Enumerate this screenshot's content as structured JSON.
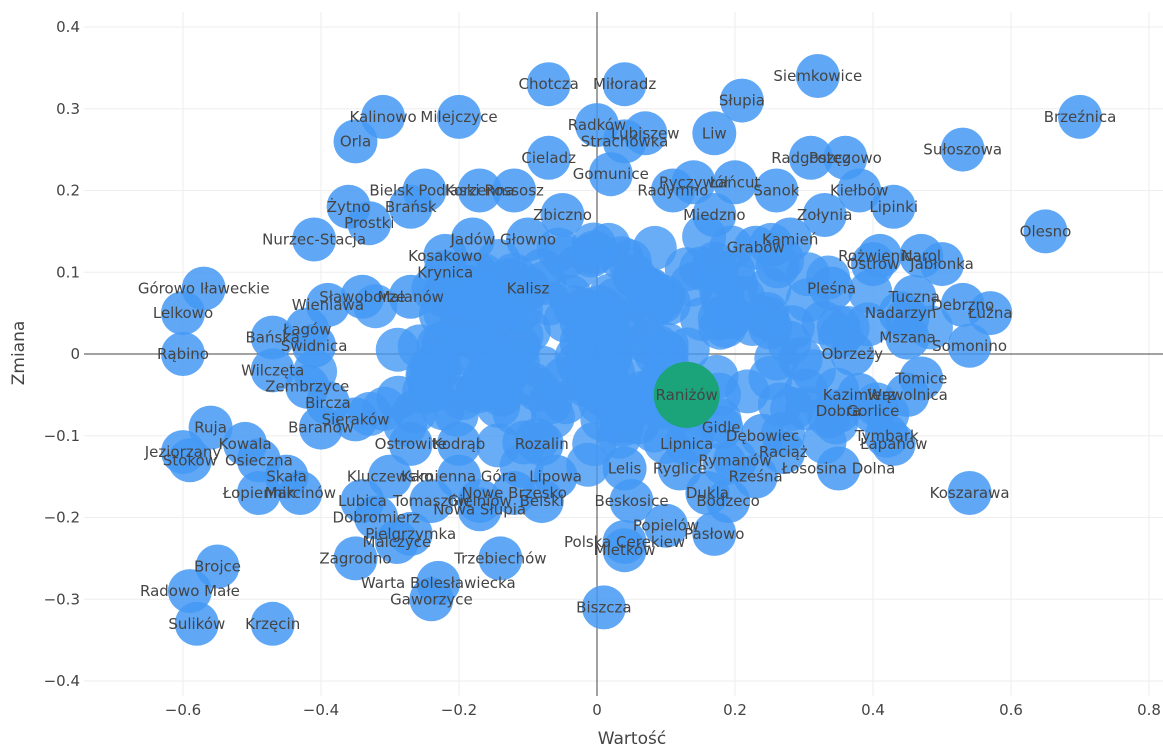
{
  "chart_data": {
    "type": "scatter",
    "xlabel": "Wartość",
    "ylabel": "Zmiana",
    "xlim": [
      -0.72,
      0.82
    ],
    "ylim": [
      -0.42,
      0.42
    ],
    "x_ticks": [
      -0.6,
      -0.4,
      -0.2,
      0,
      0.2,
      0.4,
      0.6,
      0.8
    ],
    "y_ticks": [
      -0.4,
      -0.3,
      -0.2,
      -0.1,
      0,
      0.1,
      0.2,
      0.3,
      0.4
    ],
    "grid": true,
    "legend": "none",
    "colors": {
      "point": "#4499f5",
      "highlight": "#1ba37a",
      "text": "#444444",
      "grid": "#eeeeee",
      "zeroline": "#444444"
    },
    "points": [
      {
        "label": "Brzeźnica",
        "x": 0.7,
        "y": 0.29
      },
      {
        "label": "Sułoszowa",
        "x": 0.53,
        "y": 0.25
      },
      {
        "label": "Olesno",
        "x": 0.65,
        "y": 0.15
      },
      {
        "label": "Siemkowice",
        "x": 0.32,
        "y": 0.34
      },
      {
        "label": "Miłoradz",
        "x": 0.04,
        "y": 0.33
      },
      {
        "label": "Chotcza",
        "x": -0.07,
        "y": 0.33
      },
      {
        "label": "Słupia",
        "x": 0.21,
        "y": 0.31
      },
      {
        "label": "Kalinowo",
        "x": -0.31,
        "y": 0.29
      },
      {
        "label": "Milejczyce",
        "x": -0.2,
        "y": 0.29
      },
      {
        "label": "Orla",
        "x": -0.35,
        "y": 0.26
      },
      {
        "label": "Radków",
        "x": 0.0,
        "y": 0.28
      },
      {
        "label": "Lubiszew",
        "x": 0.07,
        "y": 0.27
      },
      {
        "label": "Strachówka",
        "x": 0.04,
        "y": 0.26
      },
      {
        "label": "Liw",
        "x": 0.17,
        "y": 0.27
      },
      {
        "label": "Radgoszcz",
        "x": 0.31,
        "y": 0.24
      },
      {
        "label": "Potęgowo",
        "x": 0.36,
        "y": 0.24
      },
      {
        "label": "Cieladz",
        "x": -0.07,
        "y": 0.24
      },
      {
        "label": "Gomunice",
        "x": 0.02,
        "y": 0.22
      },
      {
        "label": "Kiełbów",
        "x": 0.38,
        "y": 0.2
      },
      {
        "label": "Lipinki",
        "x": 0.43,
        "y": 0.18
      },
      {
        "label": "Zołynia",
        "x": 0.33,
        "y": 0.17
      },
      {
        "label": "Kamień",
        "x": 0.28,
        "y": 0.14
      },
      {
        "label": "Rożwienica",
        "x": 0.41,
        "y": 0.12
      },
      {
        "label": "Bielsk Podlaski",
        "x": -0.25,
        "y": 0.2
      },
      {
        "label": "Korzenna",
        "x": -0.17,
        "y": 0.2
      },
      {
        "label": "Rossosz",
        "x": -0.12,
        "y": 0.2
      },
      {
        "label": "Radymno",
        "x": 0.11,
        "y": 0.2
      },
      {
        "label": "Łańcut",
        "x": 0.2,
        "y": 0.21
      },
      {
        "label": "Ryczywół",
        "x": 0.14,
        "y": 0.21
      },
      {
        "label": "Sanok",
        "x": 0.26,
        "y": 0.2
      },
      {
        "label": "Żytno",
        "x": -0.36,
        "y": 0.18
      },
      {
        "label": "Brańsk",
        "x": -0.27,
        "y": 0.18
      },
      {
        "label": "Prostki",
        "x": -0.33,
        "y": 0.16
      },
      {
        "label": "Zbiczno",
        "x": -0.05,
        "y": 0.17
      },
      {
        "label": "Miedzno",
        "x": 0.17,
        "y": 0.17
      },
      {
        "label": "Nurzec-Stacja",
        "x": -0.41,
        "y": 0.14
      },
      {
        "label": "Jadów",
        "x": -0.18,
        "y": 0.14
      },
      {
        "label": "Głowno",
        "x": -0.1,
        "y": 0.14
      },
      {
        "label": "Grabów",
        "x": 0.23,
        "y": 0.13
      },
      {
        "label": "Kosakowo",
        "x": -0.22,
        "y": 0.12
      },
      {
        "label": "Ostrów",
        "x": 0.4,
        "y": 0.11
      },
      {
        "label": "Narol",
        "x": 0.47,
        "y": 0.12
      },
      {
        "label": "Jabłonka",
        "x": 0.5,
        "y": 0.11
      },
      {
        "label": "Górowo Iławeckie",
        "x": -0.57,
        "y": 0.08
      },
      {
        "label": "Lelkowo",
        "x": -0.6,
        "y": 0.05
      },
      {
        "label": "Krynica",
        "x": -0.22,
        "y": 0.1
      },
      {
        "label": "Sławoborze",
        "x": -0.34,
        "y": 0.07
      },
      {
        "label": "Wieniawa",
        "x": -0.39,
        "y": 0.06
      },
      {
        "label": "Malanów",
        "x": -0.27,
        "y": 0.07
      },
      {
        "label": "Kalisz",
        "x": -0.1,
        "y": 0.08
      },
      {
        "label": "Pleśna",
        "x": 0.34,
        "y": 0.08
      },
      {
        "label": "Tuczna",
        "x": 0.46,
        "y": 0.07
      },
      {
        "label": "Nadarzyn",
        "x": 0.44,
        "y": 0.05
      },
      {
        "label": "Debrzno",
        "x": 0.53,
        "y": 0.06
      },
      {
        "label": "Łużna",
        "x": 0.57,
        "y": 0.05
      },
      {
        "label": "Bańska",
        "x": -0.47,
        "y": 0.02
      },
      {
        "label": "Łagów",
        "x": -0.42,
        "y": 0.03
      },
      {
        "label": "Świdnica",
        "x": -0.41,
        "y": 0.01
      },
      {
        "label": "Rąbino",
        "x": -0.6,
        "y": 0.0
      },
      {
        "label": "Mszana",
        "x": 0.45,
        "y": 0.02
      },
      {
        "label": "Somonino",
        "x": 0.54,
        "y": 0.01
      },
      {
        "label": "Obrzeży",
        "x": 0.37,
        "y": 0.0
      },
      {
        "label": "Wilczęta",
        "x": -0.47,
        "y": -0.02
      },
      {
        "label": "Zembrzyce",
        "x": -0.42,
        "y": -0.04
      },
      {
        "label": "Tomice",
        "x": 0.47,
        "y": -0.03
      },
      {
        "label": "Kazimierz",
        "x": 0.38,
        "y": -0.05
      },
      {
        "label": "Wąwolnica",
        "x": 0.45,
        "y": -0.05
      },
      {
        "label": "Raniżów",
        "x": 0.13,
        "y": -0.05
      },
      {
        "label": "Bircza",
        "x": -0.39,
        "y": -0.06
      },
      {
        "label": "Dobra",
        "x": 0.35,
        "y": -0.07
      },
      {
        "label": "Gorlice",
        "x": 0.4,
        "y": -0.07
      },
      {
        "label": "Ruja",
        "x": -0.56,
        "y": -0.09
      },
      {
        "label": "Baranów",
        "x": -0.4,
        "y": -0.09
      },
      {
        "label": "Sieraków",
        "x": -0.35,
        "y": -0.08
      },
      {
        "label": "Gidle",
        "x": 0.18,
        "y": -0.09
      },
      {
        "label": "Dębowiec",
        "x": 0.24,
        "y": -0.1
      },
      {
        "label": "Tymbark",
        "x": 0.42,
        "y": -0.1
      },
      {
        "label": "Łapanów",
        "x": 0.43,
        "y": -0.11
      },
      {
        "label": "Jeziorzany",
        "x": -0.6,
        "y": -0.12
      },
      {
        "label": "Stoków",
        "x": -0.59,
        "y": -0.13
      },
      {
        "label": "Kowala",
        "x": -0.51,
        "y": -0.11
      },
      {
        "label": "Osieczna",
        "x": -0.49,
        "y": -0.13
      },
      {
        "label": "Ostrowite",
        "x": -0.27,
        "y": -0.11
      },
      {
        "label": "Kodrąb",
        "x": -0.2,
        "y": -0.11
      },
      {
        "label": "Rozalin",
        "x": -0.08,
        "y": -0.11
      },
      {
        "label": "Lipnica",
        "x": 0.13,
        "y": -0.11
      },
      {
        "label": "Raciąż",
        "x": 0.27,
        "y": -0.12
      },
      {
        "label": "Rymanów",
        "x": 0.2,
        "y": -0.13
      },
      {
        "label": "Skała",
        "x": -0.45,
        "y": -0.15
      },
      {
        "label": "Kluczewsko",
        "x": -0.3,
        "y": -0.15
      },
      {
        "label": "Kamienna Góra",
        "x": -0.2,
        "y": -0.15
      },
      {
        "label": "Lipowa",
        "x": -0.06,
        "y": -0.15
      },
      {
        "label": "Lelis",
        "x": 0.04,
        "y": -0.14
      },
      {
        "label": "Ryglice",
        "x": 0.12,
        "y": -0.14
      },
      {
        "label": "Rześna",
        "x": 0.23,
        "y": -0.15
      },
      {
        "label": "Łososina Dolna",
        "x": 0.35,
        "y": -0.14
      },
      {
        "label": "Łopiennik",
        "x": -0.49,
        "y": -0.17
      },
      {
        "label": "Marcinów",
        "x": -0.43,
        "y": -0.17
      },
      {
        "label": "Lubica",
        "x": -0.34,
        "y": -0.18
      },
      {
        "label": "Tomaszów",
        "x": -0.24,
        "y": -0.18
      },
      {
        "label": "Gielniów",
        "x": -0.17,
        "y": -0.18
      },
      {
        "label": "Nowe Brzesko",
        "x": -0.12,
        "y": -0.17
      },
      {
        "label": "Belski",
        "x": -0.08,
        "y": -0.18
      },
      {
        "label": "Nowa Słupia",
        "x": -0.17,
        "y": -0.19
      },
      {
        "label": "Beskosice",
        "x": 0.05,
        "y": -0.18
      },
      {
        "label": "Dukla",
        "x": 0.16,
        "y": -0.17
      },
      {
        "label": "Bodzeco",
        "x": 0.19,
        "y": -0.18
      },
      {
        "label": "Koszarawa",
        "x": 0.54,
        "y": -0.17
      },
      {
        "label": "Dobromierz",
        "x": -0.32,
        "y": -0.2
      },
      {
        "label": "Pielgrzymka",
        "x": -0.27,
        "y": -0.22
      },
      {
        "label": "Malczyce",
        "x": -0.29,
        "y": -0.23
      },
      {
        "label": "Popielów",
        "x": 0.1,
        "y": -0.21
      },
      {
        "label": "Polska Cerekiew",
        "x": 0.04,
        "y": -0.23
      },
      {
        "label": "Mietków",
        "x": 0.04,
        "y": -0.24
      },
      {
        "label": "Pasłowo",
        "x": 0.17,
        "y": -0.22
      },
      {
        "label": "Zagrodno",
        "x": -0.35,
        "y": -0.25
      },
      {
        "label": "Trzebiechów",
        "x": -0.14,
        "y": -0.25
      },
      {
        "label": "Brojce",
        "x": -0.55,
        "y": -0.26
      },
      {
        "label": "Radowo Małe",
        "x": -0.59,
        "y": -0.29
      },
      {
        "label": "Warta Bolesławiecka",
        "x": -0.23,
        "y": -0.28
      },
      {
        "label": "Gaworzyce",
        "x": -0.24,
        "y": -0.3
      },
      {
        "label": "Biszcza",
        "x": 0.01,
        "y": -0.31
      },
      {
        "label": "Krzęcin",
        "x": -0.47,
        "y": -0.33
      },
      {
        "label": "Sulików",
        "x": -0.58,
        "y": -0.33
      }
    ]
  }
}
